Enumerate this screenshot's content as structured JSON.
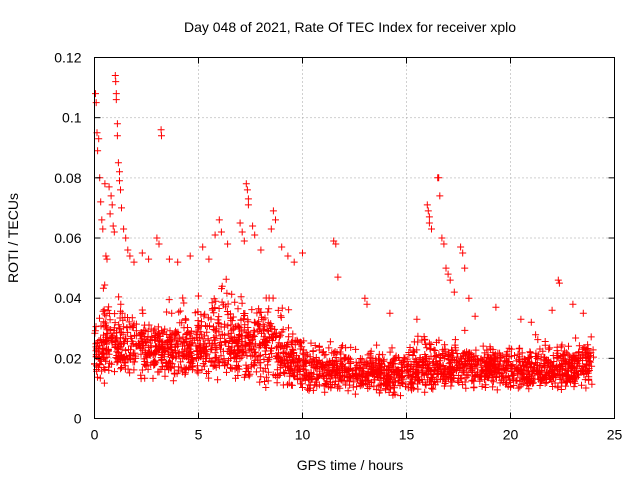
{
  "chart_data": {
    "type": "scatter",
    "title": "Day 048 of 2021, Rate Of TEC Index for receiver xplo",
    "xlabel": "GPS time / hours",
    "ylabel": "ROTI / TECUs",
    "xlim": [
      0,
      25
    ],
    "ylim": [
      0,
      0.12
    ],
    "x_ticks": [
      0,
      5,
      10,
      15,
      20,
      25
    ],
    "x_tick_labels": [
      "0",
      "5",
      "10",
      "15",
      "20",
      "25"
    ],
    "y_ticks": [
      0,
      0.02,
      0.04,
      0.06,
      0.08,
      0.1,
      0.12
    ],
    "y_tick_labels": [
      "0",
      "0.02",
      "0.04",
      "0.06",
      "0.08",
      "0.1",
      "0.12"
    ],
    "grid": true,
    "marker": "plus",
    "marker_color": "#ff0000",
    "x_data_range": [
      0,
      24
    ],
    "envelope": [
      {
        "x": 0.0,
        "lo": 0.01,
        "hi": 0.035
      },
      {
        "x": 0.5,
        "lo": 0.011,
        "hi": 0.045
      },
      {
        "x": 1.0,
        "lo": 0.011,
        "hi": 0.04
      },
      {
        "x": 2.0,
        "lo": 0.011,
        "hi": 0.038
      },
      {
        "x": 3.0,
        "lo": 0.011,
        "hi": 0.037
      },
      {
        "x": 4.0,
        "lo": 0.01,
        "hi": 0.04
      },
      {
        "x": 5.0,
        "lo": 0.01,
        "hi": 0.042
      },
      {
        "x": 6.0,
        "lo": 0.01,
        "hi": 0.044
      },
      {
        "x": 7.0,
        "lo": 0.01,
        "hi": 0.045
      },
      {
        "x": 8.0,
        "lo": 0.01,
        "hi": 0.045
      },
      {
        "x": 9.0,
        "lo": 0.009,
        "hi": 0.04
      },
      {
        "x": 10.0,
        "lo": 0.008,
        "hi": 0.03
      },
      {
        "x": 11.0,
        "lo": 0.008,
        "hi": 0.027
      },
      {
        "x": 12.0,
        "lo": 0.008,
        "hi": 0.026
      },
      {
        "x": 13.0,
        "lo": 0.007,
        "hi": 0.025
      },
      {
        "x": 14.0,
        "lo": 0.007,
        "hi": 0.024
      },
      {
        "x": 15.0,
        "lo": 0.007,
        "hi": 0.026
      },
      {
        "x": 16.0,
        "lo": 0.008,
        "hi": 0.03
      },
      {
        "x": 17.0,
        "lo": 0.008,
        "hi": 0.03
      },
      {
        "x": 18.0,
        "lo": 0.008,
        "hi": 0.028
      },
      {
        "x": 19.0,
        "lo": 0.008,
        "hi": 0.027
      },
      {
        "x": 20.0,
        "lo": 0.008,
        "hi": 0.027
      },
      {
        "x": 21.0,
        "lo": 0.008,
        "hi": 0.027
      },
      {
        "x": 22.0,
        "lo": 0.008,
        "hi": 0.026
      },
      {
        "x": 23.0,
        "lo": 0.008,
        "hi": 0.027
      },
      {
        "x": 24.0,
        "lo": 0.009,
        "hi": 0.03
      }
    ],
    "outliers": [
      {
        "x": 0.05,
        "y": 0.108
      },
      {
        "x": 0.08,
        "y": 0.105
      },
      {
        "x": 0.12,
        "y": 0.095
      },
      {
        "x": 0.15,
        "y": 0.089
      },
      {
        "x": 0.2,
        "y": 0.093
      },
      {
        "x": 0.25,
        "y": 0.08
      },
      {
        "x": 0.3,
        "y": 0.072
      },
      {
        "x": 0.35,
        "y": 0.066
      },
      {
        "x": 0.4,
        "y": 0.063
      },
      {
        "x": 0.5,
        "y": 0.078
      },
      {
        "x": 0.55,
        "y": 0.054
      },
      {
        "x": 0.6,
        "y": 0.053
      },
      {
        "x": 0.7,
        "y": 0.077
      },
      {
        "x": 0.75,
        "y": 0.068
      },
      {
        "x": 0.8,
        "y": 0.074
      },
      {
        "x": 0.85,
        "y": 0.071
      },
      {
        "x": 0.9,
        "y": 0.064
      },
      {
        "x": 0.95,
        "y": 0.062
      },
      {
        "x": 1.0,
        "y": 0.114
      },
      {
        "x": 1.02,
        "y": 0.112
      },
      {
        "x": 1.05,
        "y": 0.108
      },
      {
        "x": 1.05,
        "y": 0.106
      },
      {
        "x": 1.1,
        "y": 0.098
      },
      {
        "x": 1.1,
        "y": 0.094
      },
      {
        "x": 1.15,
        "y": 0.085
      },
      {
        "x": 1.2,
        "y": 0.082
      },
      {
        "x": 1.2,
        "y": 0.079
      },
      {
        "x": 1.25,
        "y": 0.076
      },
      {
        "x": 1.3,
        "y": 0.07
      },
      {
        "x": 1.4,
        "y": 0.063
      },
      {
        "x": 1.5,
        "y": 0.06
      },
      {
        "x": 1.6,
        "y": 0.056
      },
      {
        "x": 1.7,
        "y": 0.054
      },
      {
        "x": 1.9,
        "y": 0.052
      },
      {
        "x": 2.3,
        "y": 0.055
      },
      {
        "x": 2.6,
        "y": 0.053
      },
      {
        "x": 3.0,
        "y": 0.06
      },
      {
        "x": 3.1,
        "y": 0.058
      },
      {
        "x": 3.2,
        "y": 0.096
      },
      {
        "x": 3.22,
        "y": 0.094
      },
      {
        "x": 3.6,
        "y": 0.053
      },
      {
        "x": 4.0,
        "y": 0.052
      },
      {
        "x": 4.6,
        "y": 0.054
      },
      {
        "x": 5.2,
        "y": 0.057
      },
      {
        "x": 5.5,
        "y": 0.053
      },
      {
        "x": 5.8,
        "y": 0.061
      },
      {
        "x": 6.0,
        "y": 0.066
      },
      {
        "x": 6.1,
        "y": 0.062
      },
      {
        "x": 6.4,
        "y": 0.058
      },
      {
        "x": 7.0,
        "y": 0.065
      },
      {
        "x": 7.1,
        "y": 0.062
      },
      {
        "x": 7.2,
        "y": 0.059
      },
      {
        "x": 7.3,
        "y": 0.078
      },
      {
        "x": 7.35,
        "y": 0.076
      },
      {
        "x": 7.4,
        "y": 0.073
      },
      {
        "x": 7.4,
        "y": 0.071
      },
      {
        "x": 7.6,
        "y": 0.064
      },
      {
        "x": 7.7,
        "y": 0.061
      },
      {
        "x": 8.0,
        "y": 0.056
      },
      {
        "x": 8.5,
        "y": 0.063
      },
      {
        "x": 8.6,
        "y": 0.069
      },
      {
        "x": 8.7,
        "y": 0.066
      },
      {
        "x": 9.0,
        "y": 0.057
      },
      {
        "x": 9.3,
        "y": 0.054
      },
      {
        "x": 9.6,
        "y": 0.052
      },
      {
        "x": 10.0,
        "y": 0.055
      },
      {
        "x": 11.5,
        "y": 0.059
      },
      {
        "x": 11.6,
        "y": 0.058
      },
      {
        "x": 11.7,
        "y": 0.047
      },
      {
        "x": 13.0,
        "y": 0.04
      },
      {
        "x": 13.1,
        "y": 0.038
      },
      {
        "x": 14.2,
        "y": 0.035
      },
      {
        "x": 15.5,
        "y": 0.033
      },
      {
        "x": 16.0,
        "y": 0.071
      },
      {
        "x": 16.05,
        "y": 0.069
      },
      {
        "x": 16.1,
        "y": 0.067
      },
      {
        "x": 16.1,
        "y": 0.065
      },
      {
        "x": 16.2,
        "y": 0.063
      },
      {
        "x": 16.5,
        "y": 0.08
      },
      {
        "x": 16.55,
        "y": 0.08
      },
      {
        "x": 16.6,
        "y": 0.074
      },
      {
        "x": 16.7,
        "y": 0.06
      },
      {
        "x": 16.8,
        "y": 0.058
      },
      {
        "x": 16.9,
        "y": 0.05
      },
      {
        "x": 17.0,
        "y": 0.048
      },
      {
        "x": 17.1,
        "y": 0.046
      },
      {
        "x": 17.3,
        "y": 0.042
      },
      {
        "x": 17.6,
        "y": 0.057
      },
      {
        "x": 17.7,
        "y": 0.055
      },
      {
        "x": 17.8,
        "y": 0.05
      },
      {
        "x": 18.0,
        "y": 0.04
      },
      {
        "x": 18.3,
        "y": 0.034
      },
      {
        "x": 19.3,
        "y": 0.037
      },
      {
        "x": 20.5,
        "y": 0.033
      },
      {
        "x": 21.0,
        "y": 0.032
      },
      {
        "x": 22.0,
        "y": 0.036
      },
      {
        "x": 22.3,
        "y": 0.046
      },
      {
        "x": 22.35,
        "y": 0.045
      },
      {
        "x": 23.0,
        "y": 0.038
      },
      {
        "x": 23.5,
        "y": 0.035
      }
    ]
  }
}
